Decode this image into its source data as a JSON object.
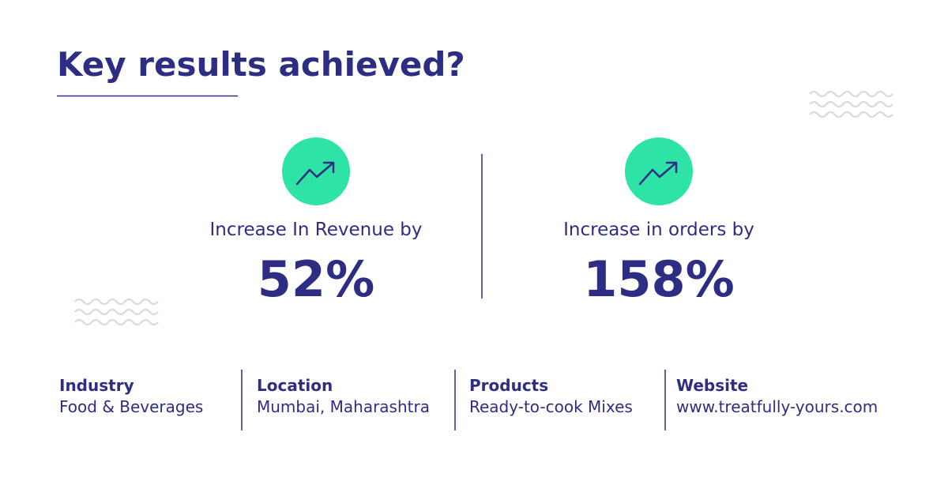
{
  "header": {
    "title": "Key results achieved?"
  },
  "metrics": [
    {
      "label": "Increase In Revenue by",
      "value": "52%"
    },
    {
      "label": "Increase in orders by",
      "value": "158%"
    }
  ],
  "details": [
    {
      "label": "Industry",
      "value": "Food & Beverages"
    },
    {
      "label": "Location",
      "value": "Mumbai, Maharashtra"
    },
    {
      "label": "Products",
      "value": "Ready-to-cook Mixes"
    },
    {
      "label": "Website",
      "value": "www.treatfully-yours.com"
    }
  ]
}
